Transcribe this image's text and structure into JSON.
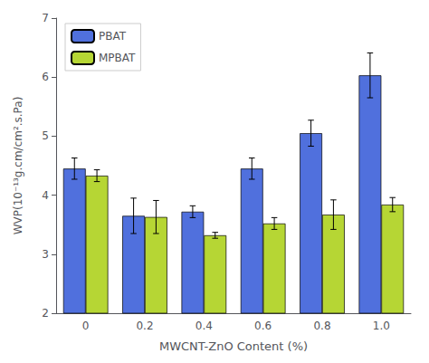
{
  "chart_data": {
    "type": "bar",
    "categories": [
      "0",
      "0.2",
      "0.4",
      "0.6",
      "0.8",
      "1.0"
    ],
    "series": [
      {
        "name": "PBAT",
        "values": [
          4.45,
          3.65,
          3.72,
          4.45,
          5.05,
          6.03
        ],
        "errors": [
          0.18,
          0.3,
          0.1,
          0.18,
          0.22,
          0.38
        ]
      },
      {
        "name": "MPBAT",
        "values": [
          4.33,
          3.63,
          3.32,
          3.52,
          3.67,
          3.84
        ],
        "errors": [
          0.1,
          0.28,
          0.05,
          0.1,
          0.25,
          0.12
        ]
      }
    ],
    "xlabel": "MWCNT-ZnO Content (%)",
    "ylabel": "WVP(10⁻¹³g.cm/cm².s.Pa)",
    "ylim": [
      2.0,
      7.0
    ],
    "yticks": [
      2,
      3,
      4,
      5,
      6,
      7
    ],
    "grid": false,
    "legend": "upper left"
  }
}
